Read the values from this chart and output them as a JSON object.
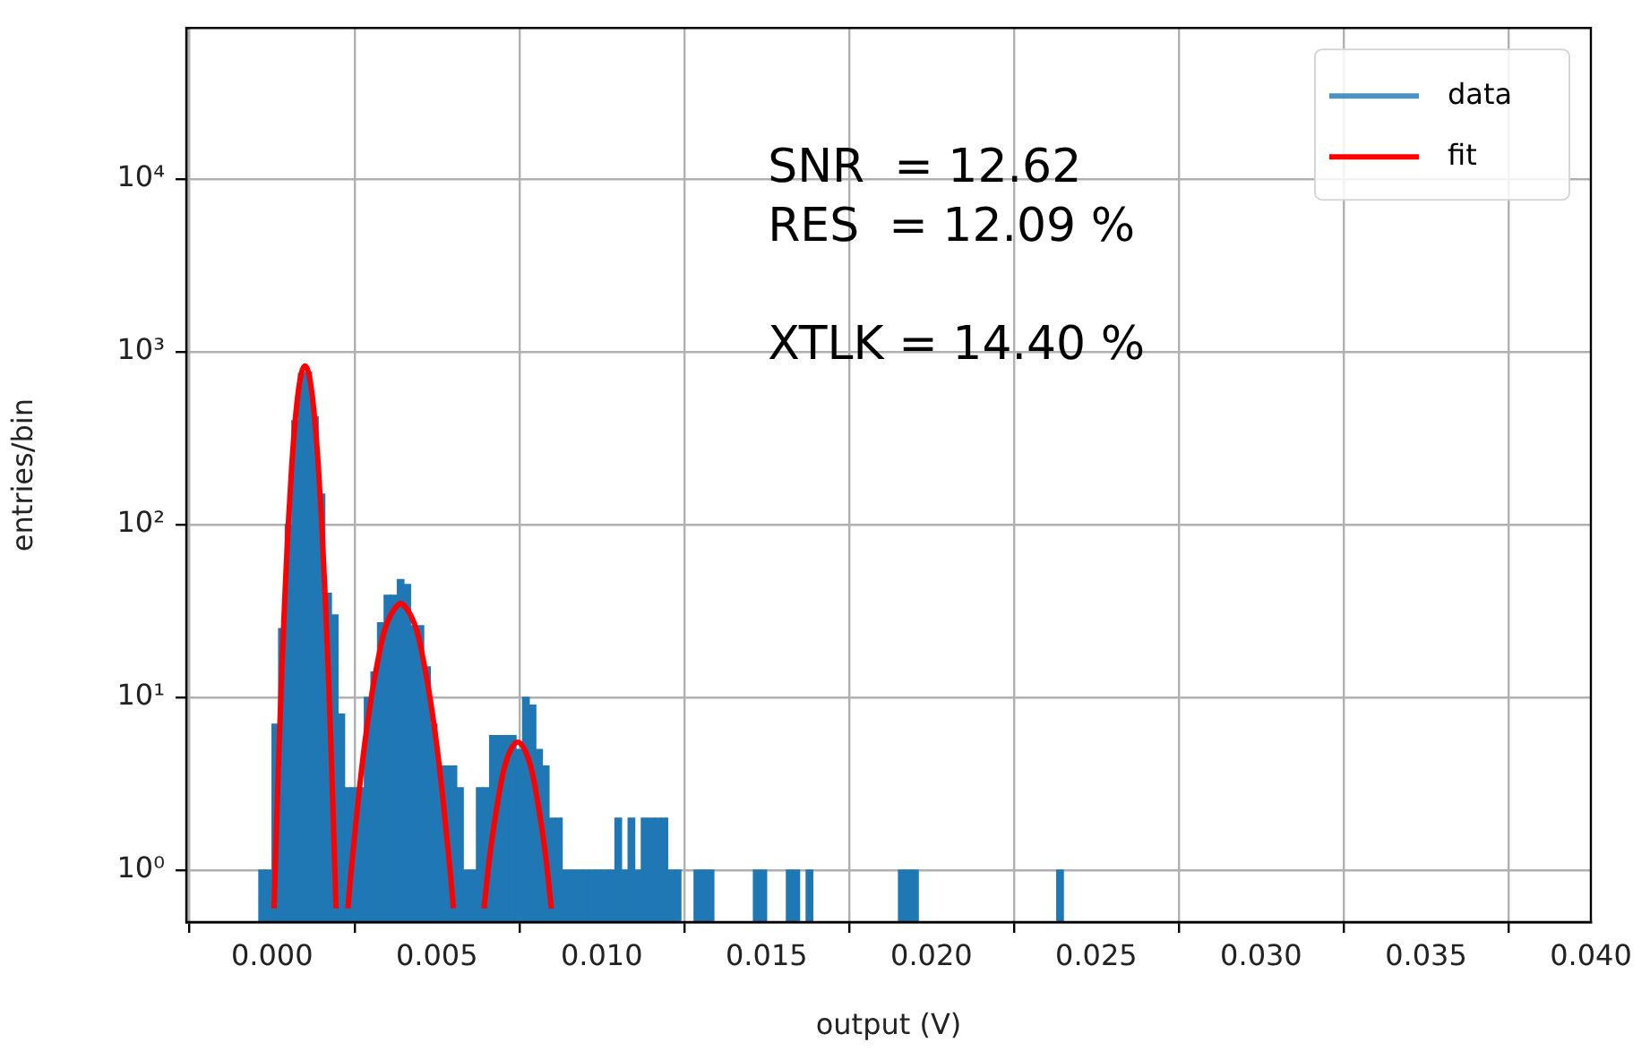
{
  "chart_data": {
    "type": "histogram",
    "xlabel": "output (V)",
    "ylabel": "entries/bin",
    "annotations": [
      "SNR  = 12.62\nRES  = 12.09 %\n\nXTLK = 14.40 %"
    ],
    "series": [
      {
        "name": "data",
        "color": "#1f77b4",
        "bins": [
          -0.0004,
          -0.0002,
          0,
          0.0002,
          0.0004,
          0.0006,
          0.0008,
          0.001,
          0.0012,
          0.0014,
          0.0016,
          0.0018,
          0.002,
          0.0022,
          0.0024,
          0.0026,
          0.0028,
          0.003,
          0.0032,
          0.0034,
          0.0036,
          0.0038,
          0.004,
          0.0042,
          0.0044,
          0.0046,
          0.0048,
          0.005,
          0.0052,
          0.0054,
          0.0056,
          0.0058,
          0.006,
          0.0062,
          0.0064,
          0.0066,
          0.0068,
          0.007,
          0.0072,
          0.0074,
          0.0076,
          0.0078,
          0.008,
          0.0082,
          0.0084,
          0.0086,
          0.0088,
          0.009,
          0.0092,
          0.0094,
          0.0096,
          0.0098,
          0.01,
          0.0102,
          0.0104,
          0.0106,
          0.0108,
          0.011,
          0.0112,
          0.0114,
          0.0116,
          0.0118,
          0.012,
          0.0122,
          0.0124,
          0.0126,
          0.0128,
          0.013,
          0.0132,
          0.0134,
          0.0136,
          0.0138,
          0.014,
          0.0142,
          0.0144,
          0.0146,
          0.0148,
          0.015,
          0.0152,
          0.0154,
          0.0156,
          0.0158,
          0.016,
          0.0162,
          0.0164,
          0.0166,
          0.0168,
          0.017,
          0.0172,
          0.0174,
          0.0176,
          0.0178,
          0.018,
          0.0182,
          0.0184,
          0.0186,
          0.0188,
          0.019,
          0.0192,
          0.0194,
          0.0196,
          0.0198,
          0.02,
          0.0202,
          0.0204,
          0.0206,
          0.0208,
          0.021,
          0.0212,
          0.0214,
          0.0216,
          0.0218,
          0.022,
          0.0222,
          0.0224,
          0.0226,
          0.0228,
          0.023,
          0.0232,
          0.0234,
          0.0236,
          0.0238,
          0.024
        ],
        "values": [
          1,
          1,
          7,
          25,
          100,
          400,
          750,
          760,
          420,
          150,
          40,
          30,
          8,
          3,
          3,
          3,
          10,
          14,
          27,
          39,
          39,
          48,
          45,
          26,
          26,
          15,
          7,
          4,
          4,
          4,
          3,
          1,
          1,
          3,
          3,
          6,
          6,
          6,
          6,
          5,
          10,
          9,
          5,
          4,
          2,
          2,
          1,
          1,
          1,
          1,
          1,
          1,
          1,
          1,
          2,
          1,
          2,
          1,
          2,
          2,
          2,
          2,
          1,
          1,
          null,
          null,
          1,
          1,
          1,
          null,
          null,
          null,
          null,
          null,
          null,
          1,
          1,
          null,
          null,
          null,
          1,
          1,
          null,
          1,
          null,
          null,
          null,
          null,
          null,
          null,
          null,
          null,
          null,
          null,
          null,
          null,
          null,
          1,
          1,
          1,
          null,
          null,
          null,
          null,
          null,
          null,
          null,
          null,
          null,
          null,
          null,
          null,
          null,
          null,
          null,
          null,
          null,
          null,
          null,
          null,
          null,
          1
        ]
      },
      {
        "name": "fit",
        "type": "line",
        "color": "#ff0000",
        "x": [
          6e-05,
          0.0002,
          0.0003,
          0.0004,
          0.0005,
          0.0006,
          0.0007,
          0.0008,
          0.0009,
          0.001,
          0.0011,
          0.0012,
          0.0013,
          0.0014,
          0.0015,
          0.0016,
          0.0017,
          0.0018,
          0.00194,
          0.0021,
          0.0023,
          0.0024,
          0.0026,
          0.0028,
          0.003,
          0.0032,
          0.0034,
          0.0036,
          0.0038,
          0.0039,
          0.004,
          0.0042,
          0.0044,
          0.0046,
          0.0048,
          0.005,
          0.0052,
          0.0054,
          0.0055,
          0.006,
          0.00643,
          0.0066,
          0.0068,
          0.007,
          0.0072,
          0.00745,
          0.0077,
          0.0079,
          0.0081,
          0.0083,
          0.00847
        ],
        "values": [
          0.6,
          4.4,
          15,
          43,
          107,
          224,
          396,
          598,
          765,
          830,
          765,
          598,
          396,
          224,
          107,
          43,
          15,
          4.4,
          0.6,
          null,
          0.6,
          1.0,
          2.4,
          5.2,
          9.7,
          16,
          24,
          30,
          34,
          35,
          34,
          30,
          24,
          16,
          9.7,
          5.2,
          2.4,
          1.0,
          0.6,
          null,
          0.6,
          1.2,
          2.2,
          3.6,
          4.8,
          5.5,
          4.8,
          3.6,
          2.2,
          1.2,
          0.6
        ]
      }
    ],
    "xlim": [
      -0.0026,
      0.04
    ],
    "xticks": [
      {
        "value": 0,
        "label": "0.000"
      },
      {
        "value": 0.005,
        "label": "0.005"
      },
      {
        "value": 0.01,
        "label": "0.010"
      },
      {
        "value": 0.015,
        "label": "0.015"
      },
      {
        "value": 0.02,
        "label": "0.020"
      },
      {
        "value": 0.025,
        "label": "0.025"
      },
      {
        "value": 0.03,
        "label": "0.030"
      },
      {
        "value": 0.035,
        "label": "0.035"
      },
      {
        "value": 0.04,
        "label": "0.040"
      }
    ],
    "ylim": [
      0.5,
      75000
    ],
    "yticks": [
      {
        "value": 1,
        "label": "10⁰"
      },
      {
        "value": 10,
        "label": "10¹"
      },
      {
        "value": 100,
        "label": "10²"
      },
      {
        "value": 1000,
        "label": "10³"
      },
      {
        "value": 10000,
        "label": "10⁴"
      }
    ],
    "log": true,
    "grid": true,
    "legend": "top right",
    "marker": "none",
    "line_style": "solid"
  }
}
